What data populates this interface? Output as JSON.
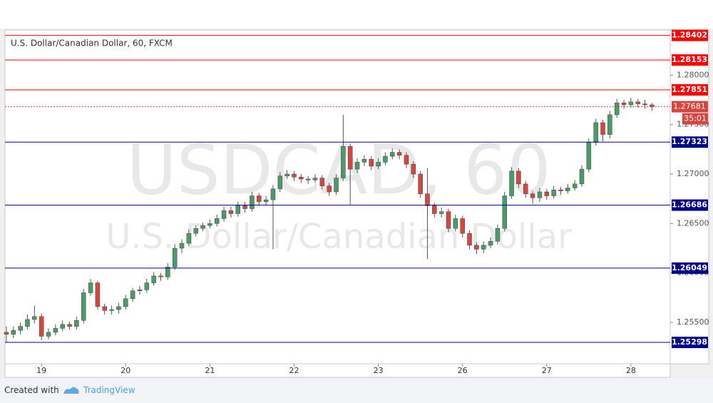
{
  "chart_data": {
    "type": "candlestick",
    "title": "U.S. Dollar/Canadian Dollar, 60, FXCM",
    "watermark": "USDCAD, 60",
    "watermark_subtitle": "U.S. Dollar/Canadian Dollar",
    "up_color": "#4c9a6a",
    "down_color": "#d4463f",
    "x": [
      -5,
      -4,
      -3,
      -2,
      -1,
      0,
      1,
      2,
      3,
      4,
      5,
      6,
      7,
      8,
      9,
      10,
      11,
      12,
      13,
      14,
      15,
      16,
      17,
      18,
      19,
      20,
      21,
      22,
      23,
      24,
      25,
      26,
      27,
      28,
      29,
      30,
      31,
      32,
      33,
      34,
      35,
      36,
      37,
      38,
      39,
      40,
      41,
      42,
      43,
      44,
      45,
      46,
      47,
      48,
      49,
      50,
      51,
      52,
      53,
      54,
      55,
      56,
      57,
      58,
      59,
      60,
      61,
      62,
      63,
      64,
      65,
      66,
      67,
      68,
      69,
      70,
      71,
      72,
      73,
      74,
      75,
      76,
      77,
      78,
      79,
      80,
      81,
      82,
      83,
      84,
      85,
      86,
      87
    ],
    "open": [
      1.254,
      1.2538,
      1.2542,
      1.2546,
      1.2553,
      1.2556,
      1.2536,
      1.254,
      1.2544,
      1.2548,
      1.2546,
      1.2552,
      1.258,
      1.259,
      1.2566,
      1.2562,
      1.2563,
      1.2566,
      1.2574,
      1.2582,
      1.2583,
      1.259,
      1.2597,
      1.2596,
      1.2606,
      1.2625,
      1.263,
      1.264,
      1.2645,
      1.2648,
      1.265,
      1.2655,
      1.2663,
      1.266,
      1.2668,
      1.2665,
      1.2678,
      1.2672,
      1.2674,
      1.2685,
      1.2698,
      1.27,
      1.2697,
      1.2695,
      1.2694,
      1.2696,
      1.2688,
      1.2682,
      1.2696,
      1.2728,
      1.2705,
      1.2712,
      1.2715,
      1.2708,
      1.2712,
      1.2718,
      1.2722,
      1.2719,
      1.271,
      1.27,
      1.268,
      1.2668,
      1.266,
      1.2662,
      1.2645,
      1.2655,
      1.264,
      1.2628,
      1.2624,
      1.2628,
      1.2632,
      1.2645,
      1.2678,
      1.2703,
      1.269,
      1.268,
      1.2676,
      1.2682,
      1.2678,
      1.2684,
      1.2683,
      1.2686,
      1.269,
      1.2705,
      1.2732,
      1.2752,
      1.274,
      1.276,
      1.2772,
      1.277,
      1.2773,
      1.2771,
      1.277
    ],
    "high": [
      1.2546,
      1.2546,
      1.255,
      1.2558,
      1.2567,
      1.2559,
      1.2544,
      1.2548,
      1.2552,
      1.2551,
      1.2556,
      1.2584,
      1.2594,
      1.2592,
      1.2569,
      1.2567,
      1.257,
      1.2578,
      1.2585,
      1.2587,
      1.2594,
      1.2601,
      1.26,
      1.261,
      1.2629,
      1.2634,
      1.2644,
      1.2648,
      1.2651,
      1.2654,
      1.2659,
      1.2667,
      1.2667,
      1.2672,
      1.2672,
      1.2682,
      1.2681,
      1.2678,
      1.2689,
      1.2702,
      1.2704,
      1.2703,
      1.27,
      1.2698,
      1.27,
      1.2699,
      1.2691,
      1.27,
      1.276,
      1.2731,
      1.2716,
      1.2719,
      1.2718,
      1.2716,
      1.2722,
      1.2726,
      1.2725,
      1.2722,
      1.2713,
      1.2703,
      1.2706,
      1.2671,
      1.2666,
      1.2665,
      1.2659,
      1.2658,
      1.2643,
      1.2631,
      1.2632,
      1.2636,
      1.2649,
      1.2682,
      1.2707,
      1.2706,
      1.2693,
      1.2683,
      1.2686,
      1.2685,
      1.2688,
      1.2687,
      1.269,
      1.2694,
      1.2709,
      1.2736,
      1.2756,
      1.2755,
      1.2764,
      1.2776,
      1.2775,
      1.2777,
      1.2776,
      1.2775,
      1.2772
    ],
    "low": [
      1.253,
      1.2534,
      1.2538,
      1.2543,
      1.2549,
      1.2532,
      1.2533,
      1.2537,
      1.2541,
      1.2543,
      1.2543,
      1.2549,
      1.2577,
      1.2563,
      1.2558,
      1.2558,
      1.2559,
      1.2563,
      1.2571,
      1.2578,
      1.258,
      1.2587,
      1.2592,
      1.2593,
      1.2603,
      1.262,
      1.2627,
      1.2637,
      1.2642,
      1.2645,
      1.2647,
      1.2652,
      1.2656,
      1.2657,
      1.2661,
      1.2662,
      1.2668,
      1.2668,
      1.2624,
      1.2682,
      1.2695,
      1.2693,
      1.2691,
      1.269,
      1.2691,
      1.2684,
      1.2678,
      1.2679,
      1.2693,
      1.2669,
      1.2701,
      1.2708,
      1.2704,
      1.2705,
      1.2709,
      1.2715,
      1.2715,
      1.2706,
      1.2696,
      1.2676,
      1.2614,
      1.2656,
      1.2656,
      1.2641,
      1.2642,
      1.2636,
      1.2624,
      1.2619,
      1.262,
      1.2625,
      1.2629,
      1.2642,
      1.2675,
      1.2686,
      1.2676,
      1.267,
      1.2672,
      1.2674,
      1.2675,
      1.2679,
      1.268,
      1.2683,
      1.2687,
      1.2702,
      1.2729,
      1.2733,
      1.2736,
      1.2757,
      1.2766,
      1.2767,
      1.2767,
      1.2766,
      1.2764
    ],
    "close": [
      1.2538,
      1.2542,
      1.2546,
      1.2553,
      1.2556,
      1.2536,
      1.254,
      1.2544,
      1.2548,
      1.2546,
      1.2552,
      1.258,
      1.259,
      1.2566,
      1.2562,
      1.2563,
      1.2566,
      1.2574,
      1.2582,
      1.2583,
      1.259,
      1.2597,
      1.2596,
      1.2606,
      1.2625,
      1.263,
      1.264,
      1.2645,
      1.2648,
      1.265,
      1.2655,
      1.2663,
      1.266,
      1.2668,
      1.2665,
      1.2678,
      1.2672,
      1.2674,
      1.2685,
      1.2698,
      1.27,
      1.2697,
      1.2695,
      1.2694,
      1.2696,
      1.2688,
      1.2682,
      1.2696,
      1.2728,
      1.2705,
      1.2712,
      1.2715,
      1.2708,
      1.2712,
      1.2718,
      1.2722,
      1.2719,
      1.271,
      1.27,
      1.268,
      1.2668,
      1.266,
      1.2662,
      1.2645,
      1.2655,
      1.264,
      1.2628,
      1.2624,
      1.2628,
      1.2632,
      1.2645,
      1.2678,
      1.2703,
      1.269,
      1.268,
      1.2676,
      1.2682,
      1.2678,
      1.2684,
      1.2683,
      1.2686,
      1.269,
      1.2705,
      1.2732,
      1.2752,
      1.274,
      1.276,
      1.2772,
      1.277,
      1.2773,
      1.2771,
      1.277,
      1.2768
    ],
    "xlim": [
      -5.2,
      89.6
    ],
    "xticks": [
      {
        "value": 0,
        "label": "19"
      },
      {
        "value": 12,
        "label": "20"
      },
      {
        "value": 24,
        "label": "21"
      },
      {
        "value": 36,
        "label": "22"
      },
      {
        "value": 48,
        "label": "23"
      },
      {
        "value": 60,
        "label": "26"
      },
      {
        "value": 72,
        "label": "27"
      },
      {
        "value": 84,
        "label": "28"
      }
    ],
    "ylim": [
      1.25082,
      1.28457
    ],
    "yticks": [
      {
        "value": 1.255,
        "label": "1.25500"
      },
      {
        "value": 1.26,
        "label": "1.26000"
      },
      {
        "value": 1.265,
        "label": "1.26500"
      },
      {
        "value": 1.27,
        "label": "1.27000"
      },
      {
        "value": 1.275,
        "label": "1.27500"
      },
      {
        "value": 1.28,
        "label": "1.28000"
      }
    ],
    "levels": [
      {
        "value": 1.28402,
        "color": "#ff0000"
      },
      {
        "value": 1.28153,
        "color": "#ff0000"
      },
      {
        "value": 1.27851,
        "color": "#ff0000"
      },
      {
        "value": 1.27323,
        "color": "#00008b"
      },
      {
        "value": 1.26686,
        "color": "#00008b"
      },
      {
        "value": 1.26049,
        "color": "#00008b"
      },
      {
        "value": 1.25298,
        "color": "#00008b"
      }
    ],
    "last_price": {
      "value": 1.27681,
      "color": "#d4463f",
      "countdown": "35:01"
    }
  },
  "footer": {
    "prefix": "Created with",
    "brand": "TradingView"
  }
}
